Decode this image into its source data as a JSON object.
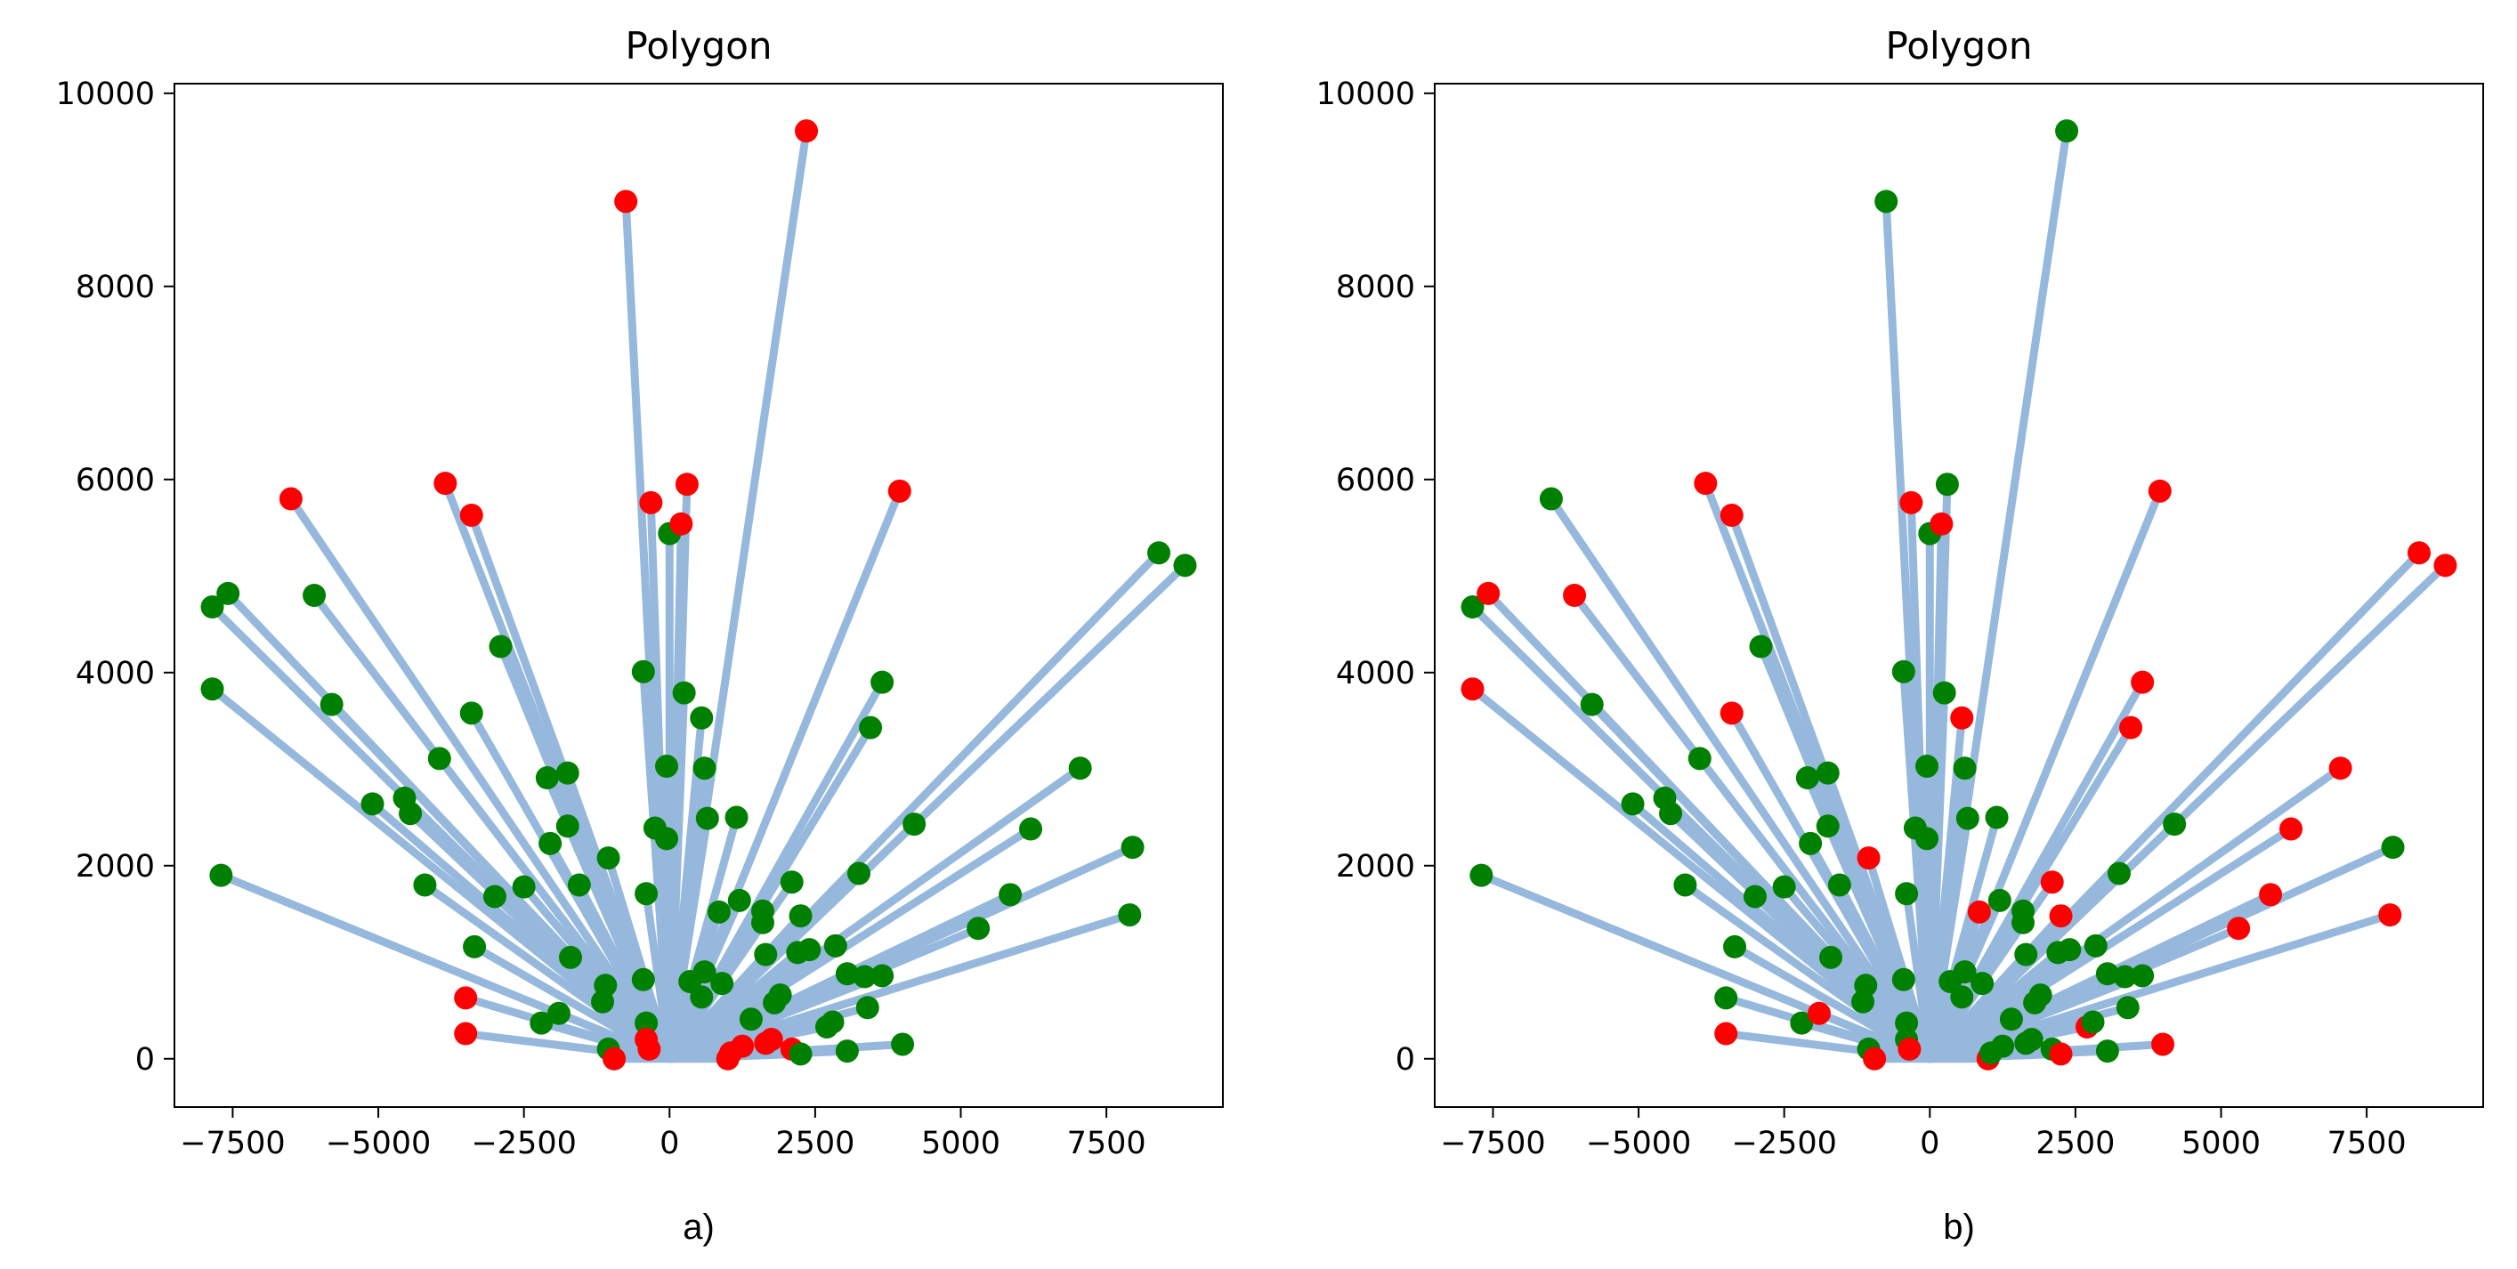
{
  "chart_data": [
    {
      "type": "scatter",
      "title": "Polygon",
      "caption": "a)",
      "xlim": [
        -8500,
        9500
      ],
      "ylim": [
        -500,
        10100
      ],
      "xticks": [
        -7500,
        -5000,
        -2500,
        0,
        2500,
        5000,
        7500
      ],
      "xtick_labels": [
        "−7500",
        "−5000",
        "−2500",
        "0",
        "2500",
        "5000",
        "7500"
      ],
      "yticks": [
        0,
        2000,
        4000,
        6000,
        8000,
        10000
      ],
      "ytick_labels": [
        "0",
        "2000",
        "4000",
        "6000",
        "8000",
        "10000"
      ],
      "grid": false,
      "colors": {
        "line": "#95b8dc",
        "green": "#008000",
        "red": "#ff0000"
      },
      "points": [
        {
          "x": -7700,
          "y": 1900,
          "color": "green"
        },
        {
          "x": -7850,
          "y": 3830,
          "color": "green"
        },
        {
          "x": -7850,
          "y": 4680,
          "color": "green"
        },
        {
          "x": -7580,
          "y": 4820,
          "color": "green"
        },
        {
          "x": -6500,
          "y": 5800,
          "color": "red"
        },
        {
          "x": -6100,
          "y": 4800,
          "color": "green"
        },
        {
          "x": -5800,
          "y": 3670,
          "color": "green"
        },
        {
          "x": -5100,
          "y": 2640,
          "color": "green"
        },
        {
          "x": -4550,
          "y": 2700,
          "color": "green"
        },
        {
          "x": -4450,
          "y": 2540,
          "color": "green"
        },
        {
          "x": -4200,
          "y": 1800,
          "color": "green"
        },
        {
          "x": -3950,
          "y": 3110,
          "color": "green"
        },
        {
          "x": -3850,
          "y": 5960,
          "color": "red"
        },
        {
          "x": -3400,
          "y": 5630,
          "color": "red"
        },
        {
          "x": -3400,
          "y": 3580,
          "color": "green"
        },
        {
          "x": -3350,
          "y": 1160,
          "color": "green"
        },
        {
          "x": -3500,
          "y": 630,
          "color": "red"
        },
        {
          "x": -3500,
          "y": 260,
          "color": "red"
        },
        {
          "x": -2900,
          "y": 4270,
          "color": "green"
        },
        {
          "x": -3000,
          "y": 1680,
          "color": "green"
        },
        {
          "x": -2500,
          "y": 1780,
          "color": "green"
        },
        {
          "x": -2100,
          "y": 2910,
          "color": "green"
        },
        {
          "x": -2050,
          "y": 2230,
          "color": "green"
        },
        {
          "x": -2200,
          "y": 370,
          "color": "green"
        },
        {
          "x": -1900,
          "y": 470,
          "color": "green"
        },
        {
          "x": -1750,
          "y": 2960,
          "color": "green"
        },
        {
          "x": -1750,
          "y": 2410,
          "color": "green"
        },
        {
          "x": -1700,
          "y": 1050,
          "color": "green"
        },
        {
          "x": -1550,
          "y": 1800,
          "color": "green"
        },
        {
          "x": -1050,
          "y": 2080,
          "color": "green"
        },
        {
          "x": -1100,
          "y": 760,
          "color": "green"
        },
        {
          "x": -1150,
          "y": 590,
          "color": "green"
        },
        {
          "x": -1050,
          "y": 100,
          "color": "green"
        },
        {
          "x": -950,
          "y": 0,
          "color": "red"
        },
        {
          "x": -750,
          "y": 8880,
          "color": "red"
        },
        {
          "x": -450,
          "y": 4010,
          "color": "green"
        },
        {
          "x": -400,
          "y": 1710,
          "color": "green"
        },
        {
          "x": -450,
          "y": 820,
          "color": "green"
        },
        {
          "x": -400,
          "y": 370,
          "color": "green"
        },
        {
          "x": -400,
          "y": 200,
          "color": "red"
        },
        {
          "x": -350,
          "y": 100,
          "color": "red"
        },
        {
          "x": -320,
          "y": 5760,
          "color": "red"
        },
        {
          "x": -250,
          "y": 2390,
          "color": "green"
        },
        {
          "x": -50,
          "y": 3030,
          "color": "green"
        },
        {
          "x": -50,
          "y": 2280,
          "color": "green"
        },
        {
          "x": 0,
          "y": 5440,
          "color": "green"
        },
        {
          "x": 200,
          "y": 5540,
          "color": "red"
        },
        {
          "x": 300,
          "y": 5950,
          "color": "red"
        },
        {
          "x": 250,
          "y": 3790,
          "color": "green"
        },
        {
          "x": 350,
          "y": 800,
          "color": "green"
        },
        {
          "x": 550,
          "y": 3530,
          "color": "green"
        },
        {
          "x": 600,
          "y": 3010,
          "color": "green"
        },
        {
          "x": 650,
          "y": 2490,
          "color": "green"
        },
        {
          "x": 600,
          "y": 900,
          "color": "green"
        },
        {
          "x": 550,
          "y": 640,
          "color": "green"
        },
        {
          "x": 850,
          "y": 1520,
          "color": "green"
        },
        {
          "x": 900,
          "y": 780,
          "color": "green"
        },
        {
          "x": 1000,
          "y": 0,
          "color": "red"
        },
        {
          "x": 1050,
          "y": 60,
          "color": "red"
        },
        {
          "x": 1150,
          "y": 2500,
          "color": "green"
        },
        {
          "x": 1200,
          "y": 1640,
          "color": "green"
        },
        {
          "x": 1250,
          "y": 130,
          "color": "red"
        },
        {
          "x": 1400,
          "y": 410,
          "color": "green"
        },
        {
          "x": 1600,
          "y": 1530,
          "color": "green"
        },
        {
          "x": 1600,
          "y": 1410,
          "color": "green"
        },
        {
          "x": 1650,
          "y": 1080,
          "color": "green"
        },
        {
          "x": 1650,
          "y": 160,
          "color": "red"
        },
        {
          "x": 1750,
          "y": 200,
          "color": "red"
        },
        {
          "x": 1800,
          "y": 580,
          "color": "green"
        },
        {
          "x": 1900,
          "y": 660,
          "color": "green"
        },
        {
          "x": 2100,
          "y": 1830,
          "color": "green"
        },
        {
          "x": 2100,
          "y": 100,
          "color": "red"
        },
        {
          "x": 2250,
          "y": 1480,
          "color": "green"
        },
        {
          "x": 2200,
          "y": 1100,
          "color": "green"
        },
        {
          "x": 2250,
          "y": 50,
          "color": "green"
        },
        {
          "x": 2350,
          "y": 9610,
          "color": "red"
        },
        {
          "x": 2400,
          "y": 1130,
          "color": "green"
        },
        {
          "x": 2700,
          "y": 330,
          "color": "green"
        },
        {
          "x": 2800,
          "y": 380,
          "color": "green"
        },
        {
          "x": 2850,
          "y": 1170,
          "color": "green"
        },
        {
          "x": 3050,
          "y": 880,
          "color": "green"
        },
        {
          "x": 3050,
          "y": 80,
          "color": "green"
        },
        {
          "x": 3250,
          "y": 1920,
          "color": "green"
        },
        {
          "x": 3350,
          "y": 850,
          "color": "green"
        },
        {
          "x": 3400,
          "y": 530,
          "color": "green"
        },
        {
          "x": 3450,
          "y": 3430,
          "color": "green"
        },
        {
          "x": 3650,
          "y": 3900,
          "color": "green"
        },
        {
          "x": 3650,
          "y": 860,
          "color": "green"
        },
        {
          "x": 3950,
          "y": 5880,
          "color": "red"
        },
        {
          "x": 4000,
          "y": 150,
          "color": "green"
        },
        {
          "x": 4200,
          "y": 2430,
          "color": "green"
        },
        {
          "x": 5300,
          "y": 1350,
          "color": "green"
        },
        {
          "x": 5850,
          "y": 1700,
          "color": "green"
        },
        {
          "x": 6200,
          "y": 2380,
          "color": "green"
        },
        {
          "x": 7050,
          "y": 3010,
          "color": "green"
        },
        {
          "x": 7900,
          "y": 1490,
          "color": "green"
        },
        {
          "x": 7950,
          "y": 2190,
          "color": "green"
        },
        {
          "x": 8400,
          "y": 5240,
          "color": "green"
        },
        {
          "x": 8850,
          "y": 5110,
          "color": "green"
        }
      ]
    },
    {
      "type": "scatter",
      "title": "Polygon",
      "caption": "b)",
      "xlim": [
        -8500,
        9500
      ],
      "ylim": [
        -500,
        10100
      ],
      "xticks": [
        -7500,
        -5000,
        -2500,
        0,
        2500,
        5000,
        7500
      ],
      "xtick_labels": [
        "−7500",
        "−5000",
        "−2500",
        "0",
        "2500",
        "5000",
        "7500"
      ],
      "yticks": [
        0,
        2000,
        4000,
        6000,
        8000,
        10000
      ],
      "ytick_labels": [
        "0",
        "2000",
        "4000",
        "6000",
        "8000",
        "10000"
      ],
      "grid": false,
      "colors": {
        "line": "#95b8dc",
        "green": "#008000",
        "red": "#ff0000"
      },
      "points": [
        {
          "x": -7700,
          "y": 1900,
          "color": "green"
        },
        {
          "x": -7850,
          "y": 3830,
          "color": "red"
        },
        {
          "x": -7850,
          "y": 4680,
          "color": "green"
        },
        {
          "x": -7580,
          "y": 4820,
          "color": "red"
        },
        {
          "x": -6500,
          "y": 5800,
          "color": "green"
        },
        {
          "x": -6100,
          "y": 4800,
          "color": "red"
        },
        {
          "x": -5800,
          "y": 3670,
          "color": "green"
        },
        {
          "x": -5100,
          "y": 2640,
          "color": "green"
        },
        {
          "x": -4550,
          "y": 2700,
          "color": "green"
        },
        {
          "x": -4450,
          "y": 2540,
          "color": "green"
        },
        {
          "x": -4200,
          "y": 1800,
          "color": "green"
        },
        {
          "x": -3950,
          "y": 3110,
          "color": "green"
        },
        {
          "x": -3850,
          "y": 5960,
          "color": "red"
        },
        {
          "x": -3400,
          "y": 5630,
          "color": "red"
        },
        {
          "x": -3400,
          "y": 3580,
          "color": "red"
        },
        {
          "x": -3350,
          "y": 1160,
          "color": "green"
        },
        {
          "x": -3500,
          "y": 630,
          "color": "green"
        },
        {
          "x": -3500,
          "y": 260,
          "color": "red"
        },
        {
          "x": -2900,
          "y": 4270,
          "color": "green"
        },
        {
          "x": -3000,
          "y": 1680,
          "color": "green"
        },
        {
          "x": -2500,
          "y": 1780,
          "color": "green"
        },
        {
          "x": -2100,
          "y": 2910,
          "color": "green"
        },
        {
          "x": -2050,
          "y": 2230,
          "color": "green"
        },
        {
          "x": -2200,
          "y": 370,
          "color": "green"
        },
        {
          "x": -1900,
          "y": 470,
          "color": "red"
        },
        {
          "x": -1750,
          "y": 2960,
          "color": "green"
        },
        {
          "x": -1750,
          "y": 2410,
          "color": "green"
        },
        {
          "x": -1700,
          "y": 1050,
          "color": "green"
        },
        {
          "x": -1550,
          "y": 1800,
          "color": "green"
        },
        {
          "x": -1050,
          "y": 2080,
          "color": "red"
        },
        {
          "x": -1100,
          "y": 760,
          "color": "green"
        },
        {
          "x": -1150,
          "y": 590,
          "color": "green"
        },
        {
          "x": -1050,
          "y": 100,
          "color": "green"
        },
        {
          "x": -950,
          "y": 0,
          "color": "red"
        },
        {
          "x": -750,
          "y": 8880,
          "color": "green"
        },
        {
          "x": -450,
          "y": 4010,
          "color": "green"
        },
        {
          "x": -400,
          "y": 1710,
          "color": "green"
        },
        {
          "x": -450,
          "y": 820,
          "color": "green"
        },
        {
          "x": -400,
          "y": 370,
          "color": "green"
        },
        {
          "x": -400,
          "y": 200,
          "color": "green"
        },
        {
          "x": -350,
          "y": 100,
          "color": "red"
        },
        {
          "x": -320,
          "y": 5760,
          "color": "red"
        },
        {
          "x": -250,
          "y": 2390,
          "color": "green"
        },
        {
          "x": -50,
          "y": 3030,
          "color": "green"
        },
        {
          "x": -50,
          "y": 2280,
          "color": "green"
        },
        {
          "x": 0,
          "y": 5440,
          "color": "green"
        },
        {
          "x": 200,
          "y": 5540,
          "color": "red"
        },
        {
          "x": 300,
          "y": 5950,
          "color": "green"
        },
        {
          "x": 250,
          "y": 3790,
          "color": "green"
        },
        {
          "x": 350,
          "y": 800,
          "color": "green"
        },
        {
          "x": 550,
          "y": 3530,
          "color": "red"
        },
        {
          "x": 600,
          "y": 3010,
          "color": "green"
        },
        {
          "x": 650,
          "y": 2490,
          "color": "green"
        },
        {
          "x": 600,
          "y": 900,
          "color": "green"
        },
        {
          "x": 550,
          "y": 640,
          "color": "green"
        },
        {
          "x": 850,
          "y": 1520,
          "color": "red"
        },
        {
          "x": 900,
          "y": 780,
          "color": "green"
        },
        {
          "x": 1000,
          "y": 0,
          "color": "red"
        },
        {
          "x": 1050,
          "y": 60,
          "color": "green"
        },
        {
          "x": 1150,
          "y": 2500,
          "color": "green"
        },
        {
          "x": 1200,
          "y": 1640,
          "color": "green"
        },
        {
          "x": 1250,
          "y": 130,
          "color": "green"
        },
        {
          "x": 1400,
          "y": 410,
          "color": "green"
        },
        {
          "x": 1600,
          "y": 1530,
          "color": "green"
        },
        {
          "x": 1600,
          "y": 1410,
          "color": "green"
        },
        {
          "x": 1650,
          "y": 1080,
          "color": "green"
        },
        {
          "x": 1650,
          "y": 160,
          "color": "green"
        },
        {
          "x": 1750,
          "y": 200,
          "color": "green"
        },
        {
          "x": 1800,
          "y": 580,
          "color": "green"
        },
        {
          "x": 1900,
          "y": 660,
          "color": "green"
        },
        {
          "x": 2100,
          "y": 1830,
          "color": "red"
        },
        {
          "x": 2100,
          "y": 100,
          "color": "green"
        },
        {
          "x": 2250,
          "y": 1480,
          "color": "red"
        },
        {
          "x": 2200,
          "y": 1100,
          "color": "green"
        },
        {
          "x": 2250,
          "y": 50,
          "color": "red"
        },
        {
          "x": 2350,
          "y": 9610,
          "color": "green"
        },
        {
          "x": 2400,
          "y": 1130,
          "color": "green"
        },
        {
          "x": 2700,
          "y": 330,
          "color": "red"
        },
        {
          "x": 2800,
          "y": 380,
          "color": "green"
        },
        {
          "x": 2850,
          "y": 1170,
          "color": "green"
        },
        {
          "x": 3050,
          "y": 880,
          "color": "green"
        },
        {
          "x": 3050,
          "y": 80,
          "color": "green"
        },
        {
          "x": 3250,
          "y": 1920,
          "color": "green"
        },
        {
          "x": 3350,
          "y": 850,
          "color": "green"
        },
        {
          "x": 3400,
          "y": 530,
          "color": "green"
        },
        {
          "x": 3450,
          "y": 3430,
          "color": "red"
        },
        {
          "x": 3650,
          "y": 3900,
          "color": "red"
        },
        {
          "x": 3650,
          "y": 860,
          "color": "green"
        },
        {
          "x": 3950,
          "y": 5880,
          "color": "red"
        },
        {
          "x": 4000,
          "y": 150,
          "color": "red"
        },
        {
          "x": 4200,
          "y": 2430,
          "color": "green"
        },
        {
          "x": 5300,
          "y": 1350,
          "color": "red"
        },
        {
          "x": 5850,
          "y": 1700,
          "color": "red"
        },
        {
          "x": 6200,
          "y": 2380,
          "color": "red"
        },
        {
          "x": 7050,
          "y": 3010,
          "color": "red"
        },
        {
          "x": 7900,
          "y": 1490,
          "color": "red"
        },
        {
          "x": 7950,
          "y": 2190,
          "color": "green"
        },
        {
          "x": 8400,
          "y": 5240,
          "color": "red"
        },
        {
          "x": 8850,
          "y": 5110,
          "color": "red"
        }
      ]
    }
  ]
}
